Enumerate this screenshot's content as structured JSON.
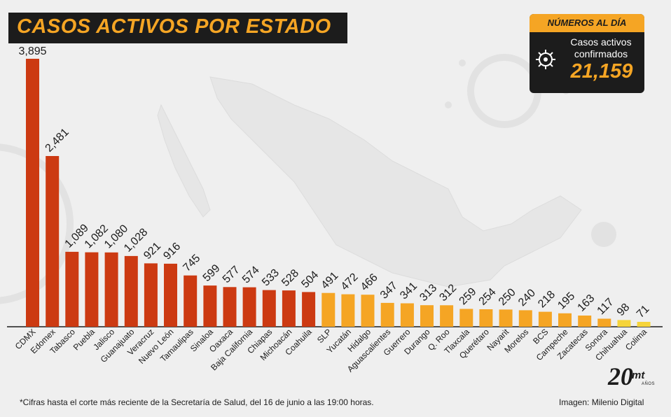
{
  "header": {
    "title": "CASOS ACTIVOS POR ESTADO"
  },
  "summary_box": {
    "heading": "NÚMEROS AL DÍA",
    "description_line1": "Casos activos",
    "description_line2": "confirmados",
    "total": "21,159",
    "icon": "virus-icon"
  },
  "footer": {
    "note": "*Cifras hasta el corte más reciente de la Secretaría de Salud, del 16 de junio a las 19:00 horas.",
    "credit": "Imagen: Milenio Digital",
    "logo_number": "20",
    "logo_brand": "mt",
    "logo_suffix": "AÑOS"
  },
  "colors": {
    "red": "#cc3a12",
    "orange": "#f5a524",
    "yellow": "#f6d43a",
    "dark": "#1c1c1c",
    "background": "#efefef"
  },
  "chart_data": {
    "type": "bar",
    "title": "CASOS ACTIVOS POR ESTADO",
    "xlabel": "",
    "ylabel": "",
    "ylim": [
      0,
      3895
    ],
    "grid": false,
    "categories": [
      "CDMX",
      "Edomex",
      "Tabasco",
      "Puebla",
      "Jalisco",
      "Guanajuato",
      "Veracruz",
      "Nuevo León",
      "Tamaulipas",
      "Sinaloa",
      "Oaxaca",
      "Baja California",
      "Chiapas",
      "Michoacán",
      "Coahuila",
      "SLP",
      "Yucatán",
      "Hidalgo",
      "Aguascalientes",
      "Guerrero",
      "Durango",
      "Q. Roo",
      "Tlaxcala",
      "Querétaro",
      "Nayarit",
      "Morelos",
      "BCS",
      "Campeche",
      "Zacatecas",
      "Sonora",
      "Chihuahua",
      "Colima"
    ],
    "values": [
      3895,
      2481,
      1089,
      1082,
      1080,
      1028,
      921,
      916,
      745,
      599,
      577,
      574,
      533,
      528,
      504,
      491,
      472,
      466,
      347,
      341,
      313,
      312,
      259,
      254,
      250,
      240,
      218,
      195,
      163,
      117,
      98,
      71
    ],
    "value_labels": [
      "3,895",
      "2,481",
      "1,089",
      "1,082",
      "1,080",
      "1,028",
      "921",
      "916",
      "745",
      "599",
      "577",
      "574",
      "533",
      "528",
      "504",
      "491",
      "472",
      "466",
      "347",
      "341",
      "313",
      "312",
      "259",
      "254",
      "250",
      "240",
      "218",
      "195",
      "163",
      "117",
      "98",
      "71"
    ],
    "bar_colors": [
      "#cc3a12",
      "#cc3a12",
      "#cc3a12",
      "#cc3a12",
      "#cc3a12",
      "#cc3a12",
      "#cc3a12",
      "#cc3a12",
      "#cc3a12",
      "#cc3a12",
      "#cc3a12",
      "#cc3a12",
      "#cc3a12",
      "#cc3a12",
      "#cc3a12",
      "#f5a524",
      "#f5a524",
      "#f5a524",
      "#f5a524",
      "#f5a524",
      "#f5a524",
      "#f5a524",
      "#f5a524",
      "#f5a524",
      "#f5a524",
      "#f5a524",
      "#f5a524",
      "#f5a524",
      "#f5a524",
      "#f5a524",
      "#f6d43a",
      "#f6d43a"
    ]
  }
}
